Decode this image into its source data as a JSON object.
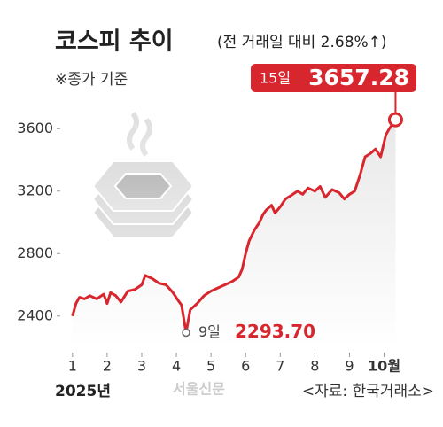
{
  "chart_data": {
    "type": "line",
    "title": "코스피 추이",
    "subtitle": "(전 거래일 대비 2.68%↑)",
    "note": "※종가 기준",
    "year_label": "2025년",
    "source": "<자료: 한국거래소>",
    "watermark": "서울신문",
    "x": [
      1.0,
      1.1,
      1.2,
      1.35,
      1.5,
      1.7,
      1.9,
      2.0,
      2.1,
      2.25,
      2.4,
      2.6,
      2.8,
      3.0,
      3.1,
      3.3,
      3.5,
      3.7,
      3.9,
      4.05,
      4.15,
      4.28,
      4.4,
      4.6,
      4.8,
      5.0,
      5.2,
      5.4,
      5.6,
      5.8,
      5.9,
      6.0,
      6.1,
      6.25,
      6.4,
      6.5,
      6.6,
      6.75,
      6.85,
      7.0,
      7.15,
      7.3,
      7.5,
      7.65,
      7.8,
      8.0,
      8.15,
      8.3,
      8.5,
      8.7,
      8.85,
      9.0,
      9.15,
      9.3,
      9.45,
      9.6,
      9.75,
      9.9,
      10.05,
      10.15,
      10.33
    ],
    "series": [
      {
        "name": "코스피",
        "color": "#d7262e",
        "values": [
          2400,
          2480,
          2520,
          2510,
          2530,
          2510,
          2540,
          2480,
          2550,
          2530,
          2490,
          2560,
          2570,
          2600,
          2660,
          2640,
          2610,
          2600,
          2550,
          2500,
          2470,
          2293.7,
          2440,
          2480,
          2530,
          2560,
          2580,
          2600,
          2620,
          2650,
          2700,
          2800,
          2880,
          2950,
          3000,
          3050,
          3080,
          3110,
          3060,
          3100,
          3150,
          3170,
          3200,
          3180,
          3220,
          3200,
          3230,
          3160,
          3210,
          3190,
          3150,
          3180,
          3200,
          3300,
          3420,
          3440,
          3470,
          3420,
          3560,
          3600,
          3657.28
        ]
      }
    ],
    "annotations": [
      {
        "day": "9일",
        "x": 4.28,
        "value": 2293.7,
        "value_label": "2293.70"
      },
      {
        "day": "15일",
        "x": 10.33,
        "value": 3657.28,
        "value_label": "3657.28"
      }
    ],
    "xlim": [
      0.8,
      10.6
    ],
    "xticks": [
      1,
      2,
      3,
      4,
      5,
      6,
      7,
      8,
      9,
      {
        "value": 10,
        "label": "10월"
      }
    ],
    "ylim": [
      2200,
      3800
    ],
    "yticks": [
      2400,
      2800,
      3200,
      3600
    ],
    "grid": false,
    "area_color": "#e6e6e6"
  }
}
